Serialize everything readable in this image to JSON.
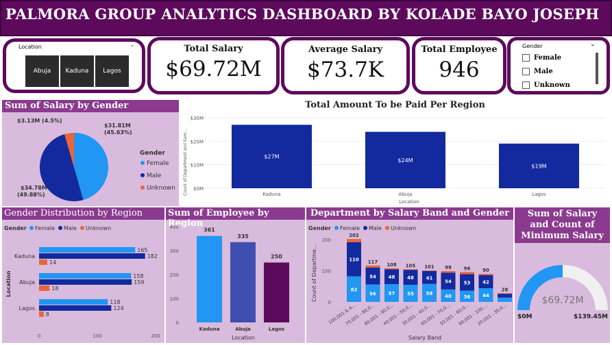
{
  "title": "PALMORA GROUP ANALYTICS DASHBOARD BY KOLADE BAYO JOSEPH",
  "location_slicer": {
    "label": "Location",
    "options": [
      "Abuja",
      "Kaduna",
      "Lagos"
    ]
  },
  "kpis": {
    "total_salary": {
      "label": "Total Salary",
      "value": "$69.72M"
    },
    "average_salary": {
      "label": "Average Salary",
      "value": "$73.7K"
    },
    "total_employee": {
      "label": "Total Employee",
      "value": "946"
    }
  },
  "gender_slicer": {
    "label": "Gender",
    "options": [
      "Female",
      "Male",
      "Unknown"
    ]
  },
  "colors": {
    "female": "#2196f3",
    "male": "#122a9e",
    "unknown": "#e8663a",
    "region_bar": "#122a9e",
    "dark_purple": "#5d0a5d"
  },
  "chart_data": [
    {
      "id": "salary_by_gender",
      "type": "pie",
      "title": "Sum of Salary by Gender",
      "legend_title": "Gender",
      "legend_position": "right",
      "slices": [
        {
          "name": "Female",
          "value": 31.81,
          "label": "$31.81M",
          "pct": "(45.63%)"
        },
        {
          "name": "Male",
          "value": 34.78,
          "label": "$34.78M",
          "pct": "(49.88%)"
        },
        {
          "name": "Unknown",
          "value": 3.13,
          "label": "$3.13M (4.5%)",
          "pct": ""
        }
      ]
    },
    {
      "id": "paid_per_region",
      "type": "bar",
      "title": "Total Amount To be Paid Per Region",
      "xlabel": "Location",
      "ylabel": "Count of Department and Sum...",
      "categories": [
        "Kaduna",
        "Abuja",
        "Lagos"
      ],
      "values": [
        27,
        24,
        19
      ],
      "data_labels": [
        "$27M",
        "$24M",
        "$19M"
      ],
      "yticks": [
        "$0M",
        "$10M",
        "$20M",
        "$30M"
      ],
      "ylim": [
        0,
        30
      ]
    },
    {
      "id": "gender_by_region",
      "type": "bar",
      "title": "Gender Distribution by Region",
      "legend_title": "Gender",
      "ylabel": "Location",
      "categories": [
        "Kaduna",
        "Abuja",
        "Lagos"
      ],
      "series": [
        {
          "name": "Female",
          "values": [
            165,
            158,
            118
          ]
        },
        {
          "name": "Male",
          "values": [
            182,
            159,
            124
          ]
        },
        {
          "name": "Unknown",
          "values": [
            14,
            18,
            8
          ]
        }
      ],
      "xticks": [
        "0",
        "100",
        "200"
      ],
      "xlim": [
        0,
        200
      ]
    },
    {
      "id": "employee_by_region",
      "type": "bar",
      "title": "Sum of Employee by Region",
      "xlabel": "Location",
      "categories": [
        "Kaduna",
        "Abuja",
        "Lagos"
      ],
      "values": [
        361,
        335,
        250
      ],
      "yticks": [
        "0",
        "100",
        "200",
        "300",
        "400"
      ],
      "ylim": [
        0,
        400
      ]
    },
    {
      "id": "dept_by_band_gender",
      "type": "bar",
      "title": "Department by Salary Band and Gender",
      "legend_title": "Gender",
      "xlabel": "Salary Band",
      "ylabel": "Count of Departme...",
      "categories": [
        "100,001 & A...",
        "70,001 - 80,0...",
        "80,001 - 90,0...",
        "40,001 - 50,0...",
        "30,001 - 40,0...",
        "60,001 - 70,0...",
        "50,001 - 60,0...",
        "90,001 - 100,...",
        "20,001 - 30,0..."
      ],
      "totals": [
        202,
        117,
        108,
        105,
        101,
        99,
        96,
        90,
        28
      ],
      "series": [
        {
          "name": "Female",
          "values": [
            82,
            56,
            57,
            55,
            58,
            40,
            36,
            44,
            14
          ]
        },
        {
          "name": "Male",
          "values": [
            110,
            54,
            48,
            48,
            41,
            54,
            53,
            42,
            12
          ]
        },
        {
          "name": "Unknown",
          "values": [
            10,
            7,
            3,
            2,
            2,
            5,
            7,
            4,
            2
          ]
        }
      ],
      "female_labels": [
        "82",
        "56",
        "57",
        "55",
        "58",
        "40",
        "36",
        "44",
        ""
      ],
      "male_labels": [
        "110",
        "54",
        "48",
        "48",
        "41",
        "54",
        "53",
        "42",
        ""
      ],
      "yticks": [
        "0",
        "100",
        "200"
      ],
      "ylim": [
        0,
        220
      ]
    },
    {
      "id": "salary_gauge",
      "type": "gauge",
      "title": "Sum of Salary and Count of Minimum Salary",
      "value": 69.72,
      "value_label": "$69.72M",
      "min": 0,
      "min_label": "$0M",
      "max": 139.45,
      "max_label": "$139.45M"
    }
  ]
}
